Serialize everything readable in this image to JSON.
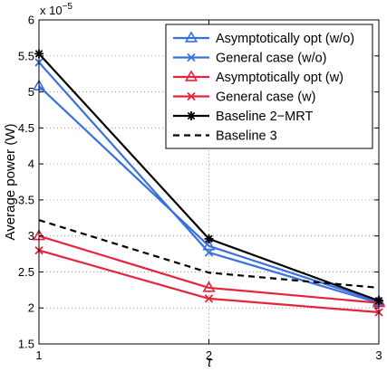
{
  "chart_data": {
    "type": "line",
    "xlabel": "τ",
    "ylabel": "Average power (W)",
    "y_exponent_label": "x 10",
    "y_exponent_power": "−5",
    "xlim": [
      1,
      3
    ],
    "ylim": [
      1.5,
      6
    ],
    "x_ticks": [
      1,
      2,
      3
    ],
    "x_tick_labels": [
      "1",
      "2",
      "3"
    ],
    "y_ticks": [
      1.5,
      2,
      2.5,
      3,
      3.5,
      4,
      4.5,
      5,
      5.5,
      6
    ],
    "y_tick_labels": [
      "1.5",
      "2",
      "2.5",
      "3",
      "3.5",
      "4",
      "4.5",
      "5",
      "5.5",
      "6"
    ],
    "grid": true,
    "legend_position": "top-right",
    "x": [
      1,
      2,
      3
    ],
    "series": [
      {
        "name": "Asymptotically opt (w/o)",
        "values": [
          5.08,
          2.86,
          2.09
        ],
        "color": "#3a6fe0",
        "marker": "triangle",
        "dash": "solid"
      },
      {
        "name": "General case (w/o)",
        "values": [
          5.41,
          2.77,
          2.07
        ],
        "color": "#3a6fe0",
        "marker": "x",
        "dash": "solid"
      },
      {
        "name": "Asymptotically opt (w)",
        "values": [
          3.0,
          2.28,
          2.07
        ],
        "color": "#e8233c",
        "marker": "triangle",
        "dash": "solid"
      },
      {
        "name": "General case (w)",
        "values": [
          2.8,
          2.13,
          1.94
        ],
        "color": "#e8233c",
        "marker": "x",
        "dash": "solid"
      },
      {
        "name": "Baseline 2−MRT",
        "values": [
          5.53,
          2.96,
          2.1
        ],
        "color": "#000000",
        "marker": "star",
        "dash": "solid"
      },
      {
        "name": "Baseline 3",
        "values": [
          3.22,
          2.49,
          2.28
        ],
        "color": "#000000",
        "marker": "none",
        "dash": "dashed"
      }
    ]
  }
}
